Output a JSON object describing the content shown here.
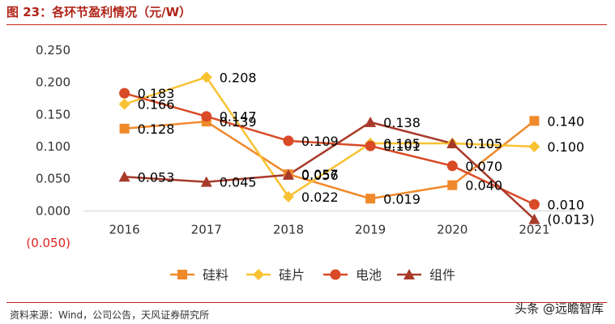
{
  "title": "图 23：各环节盈利情况（元/W）",
  "source": "资料来源：Wind，公司公告，天风证券研究所",
  "watermark": "头条 @远瞻智库",
  "colors": {
    "silicon_material": "#f0892a",
    "wafer": "#f8c232",
    "cell": "#d94a26",
    "module": "#a83a2a",
    "negative": "#e02020",
    "title": "#b02418",
    "rule": "#c0281c"
  },
  "chart_data": {
    "type": "line",
    "x": [
      "2016",
      "2017",
      "2018",
      "2019",
      "2020",
      "2021"
    ],
    "ylim": [
      -0.05,
      0.25
    ],
    "yticks": [
      -0.05,
      0.0,
      0.05,
      0.1,
      0.15,
      0.2,
      0.25
    ],
    "ytick_labels": [
      "(0.050)",
      "0.000",
      "0.050",
      "0.100",
      "0.150",
      "0.200",
      "0.250"
    ],
    "legend_position": "bottom",
    "grid": false,
    "series": [
      {
        "name": "硅料",
        "values": [
          0.128,
          0.139,
          0.057,
          0.019,
          0.04,
          0.14
        ],
        "labels": [
          "0.128",
          "0.139",
          "0.057",
          "0.019",
          "0.040",
          "0.140"
        ],
        "color": "#f0892a",
        "marker": "square"
      },
      {
        "name": "硅片",
        "values": [
          0.166,
          0.208,
          0.022,
          0.105,
          0.105,
          0.1
        ],
        "labels": [
          "0.166",
          "0.208",
          "0.022",
          "0.105",
          "0.105",
          "0.100"
        ],
        "color": "#f8c232",
        "marker": "diamond"
      },
      {
        "name": "电池",
        "values": [
          0.183,
          0.147,
          0.109,
          0.101,
          0.07,
          0.01
        ],
        "labels": [
          "0.183",
          "0.147",
          "0.109",
          "0.101",
          "0.070",
          "0.010"
        ],
        "color": "#d94a26",
        "marker": "circle"
      },
      {
        "name": "组件",
        "values": [
          0.053,
          0.045,
          0.056,
          0.138,
          0.105,
          -0.013
        ],
        "labels": [
          "0.053",
          "0.045",
          "0.056",
          "0.138",
          "0.105",
          "(0.013)"
        ],
        "color": "#a83a2a",
        "marker": "triangle"
      }
    ]
  }
}
